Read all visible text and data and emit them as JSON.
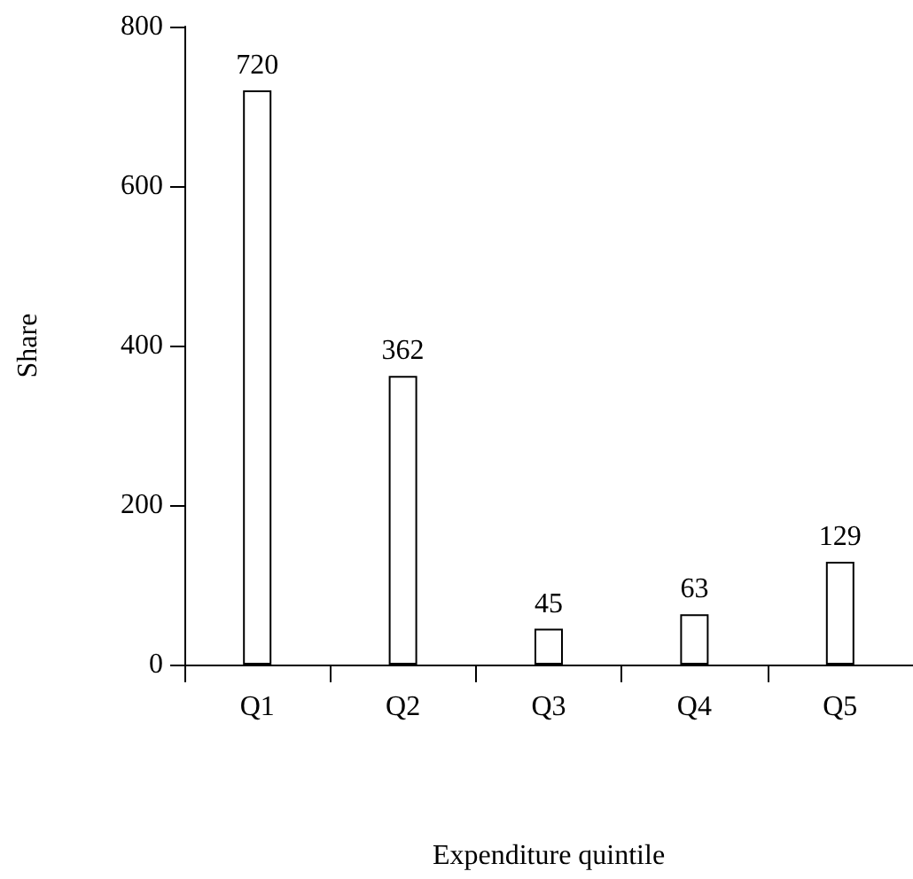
{
  "chart_data": {
    "type": "bar",
    "xlabel": "Expenditure quintile",
    "ylabel": "Share",
    "categories": [
      "Q1",
      "Q2",
      "Q3",
      "Q4",
      "Q5"
    ],
    "values": [
      720,
      362,
      45,
      63,
      129
    ],
    "color": "#ffffff",
    "ylim": [
      0,
      800
    ],
    "yticks": [
      0,
      200,
      400,
      600,
      800
    ],
    "grid": false,
    "data_labels": true
  }
}
